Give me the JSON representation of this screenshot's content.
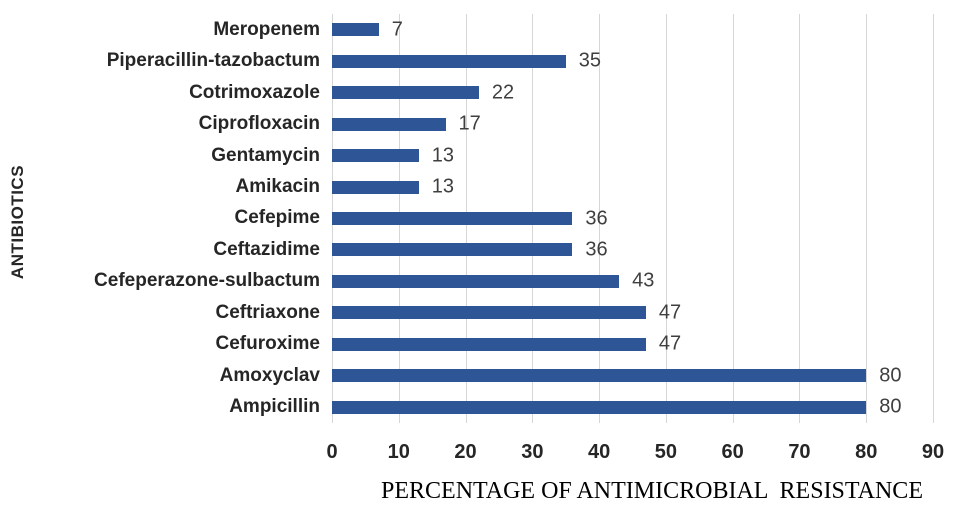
{
  "chart_data": {
    "type": "bar",
    "orientation": "horizontal",
    "title": "",
    "xlabel": "PERCENTAGE OF ANTIMICROBIAL  RESISTANCE",
    "ylabel": "ANTIBIOTICS",
    "categories": [
      "Meropenem",
      "Piperacillin-tazobactum",
      "Cotrimoxazole",
      "Ciprofloxacin",
      "Gentamycin",
      "Amikacin",
      "Cefepime",
      "Ceftazidime",
      "Cefeperazone-sulbactum",
      "Ceftriaxone",
      "Cefuroxime",
      "Amoxyclav",
      "Ampicillin"
    ],
    "values": [
      7,
      35,
      22,
      17,
      13,
      13,
      36,
      36,
      43,
      47,
      47,
      80,
      80
    ],
    "x_ticks": [
      0,
      10,
      20,
      30,
      40,
      50,
      60,
      70,
      80,
      90
    ],
    "xlim": [
      0,
      90
    ],
    "grid": "vertical-gridlines",
    "legend_position": "none",
    "data_labels": "outside-end",
    "bar_color": "#2E5696",
    "gridline_color": "#D6D6D6",
    "label_color": "#262626",
    "value_label_color": "#3F3F3F"
  }
}
